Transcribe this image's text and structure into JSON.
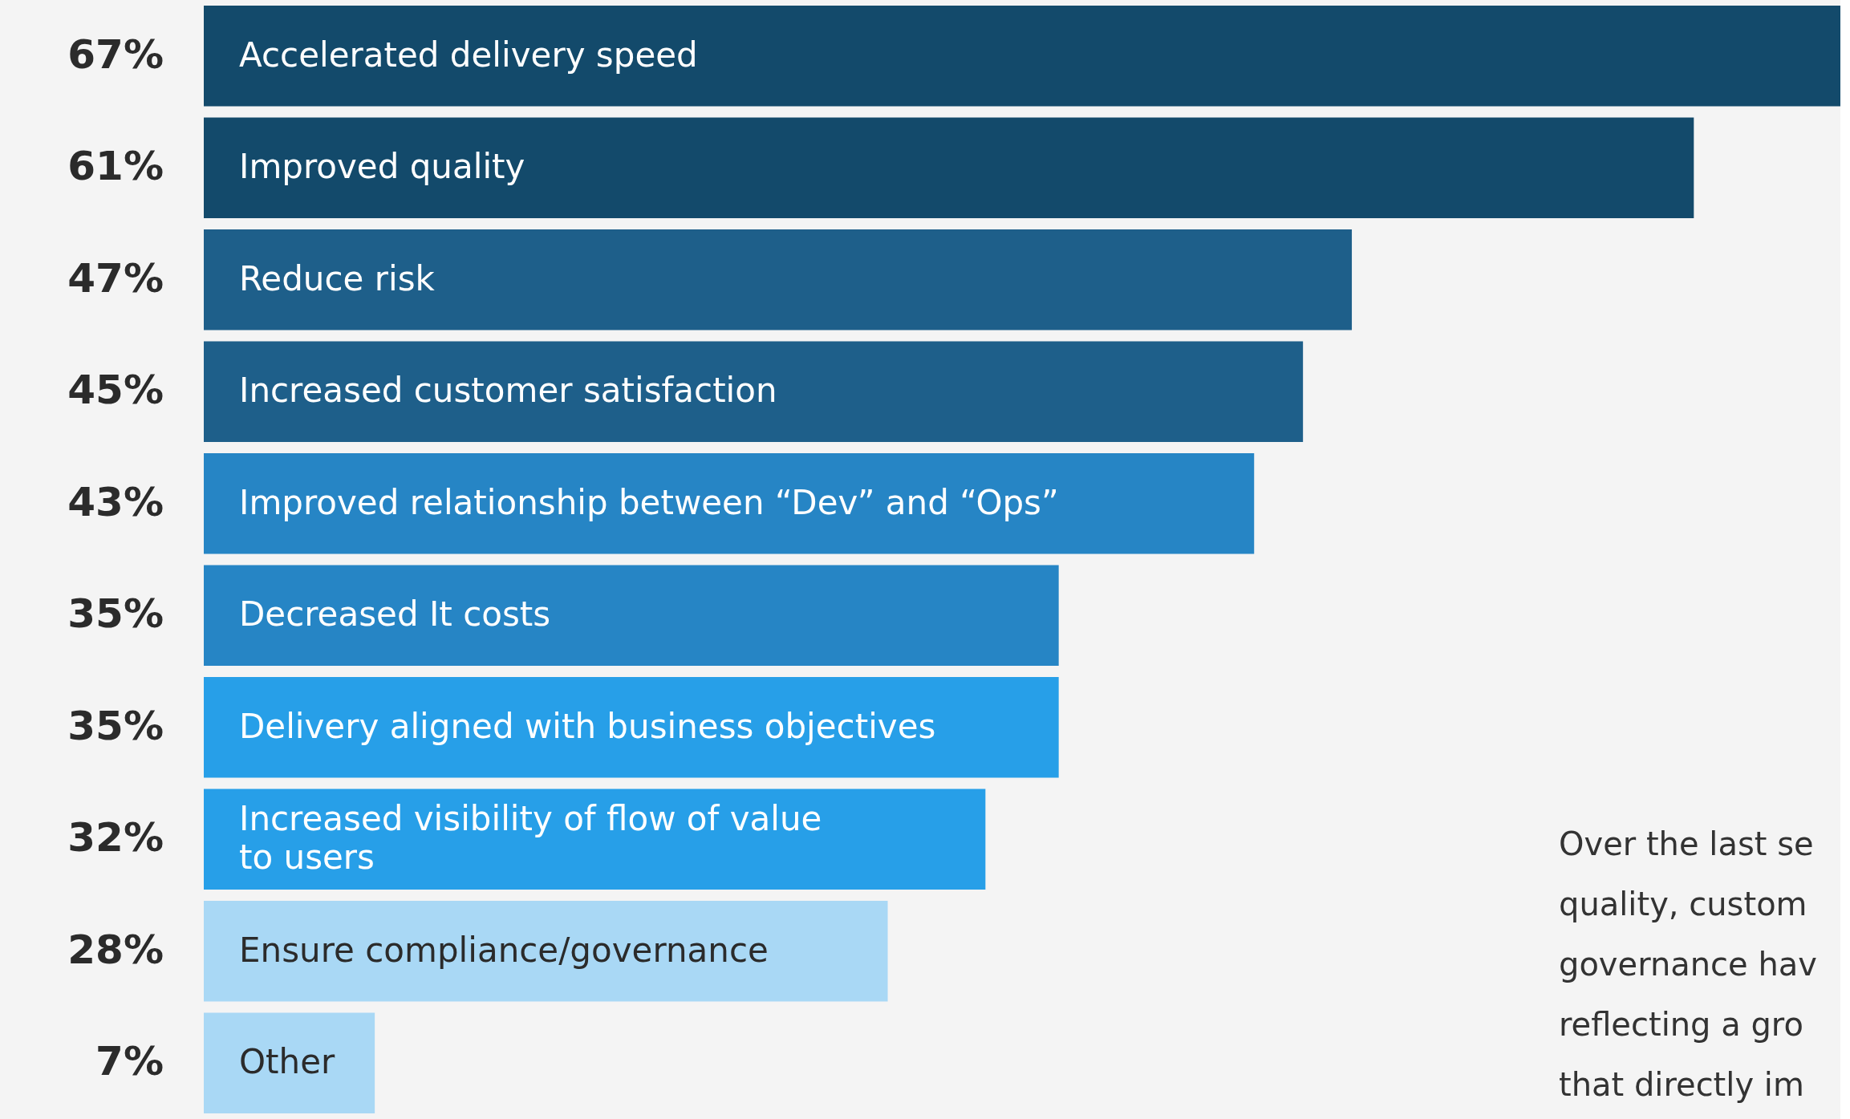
{
  "chart_data": {
    "type": "bar",
    "orientation": "horizontal",
    "categories": [
      "Accelerated delivery speed",
      "Improved quality",
      "Reduce risk",
      "Increased customer satisfaction",
      "Improved relationship between “Dev” and “Ops”",
      "Decreased It costs",
      "Delivery aligned with business objectives",
      "Increased visibility of flow of value\nto users",
      "Ensure compliance/governance",
      "Other"
    ],
    "values": [
      67,
      61,
      47,
      45,
      43,
      35,
      35,
      32,
      28,
      7
    ],
    "value_labels": [
      "67%",
      "61%",
      "47%",
      "45%",
      "43%",
      "35%",
      "35%",
      "32%",
      "28%",
      "7%"
    ],
    "colors": [
      "#134a6b",
      "#134a6b",
      "#1e5f8a",
      "#1e5f8a",
      "#2685c5",
      "#2685c5",
      "#279fe8",
      "#279fe8",
      "#a9d8f5",
      "#a9d8f5"
    ],
    "annotations": [
      "Over the last se",
      "quality, custom",
      "governance hav",
      "reflecting a gro",
      "that directly im"
    ]
  }
}
